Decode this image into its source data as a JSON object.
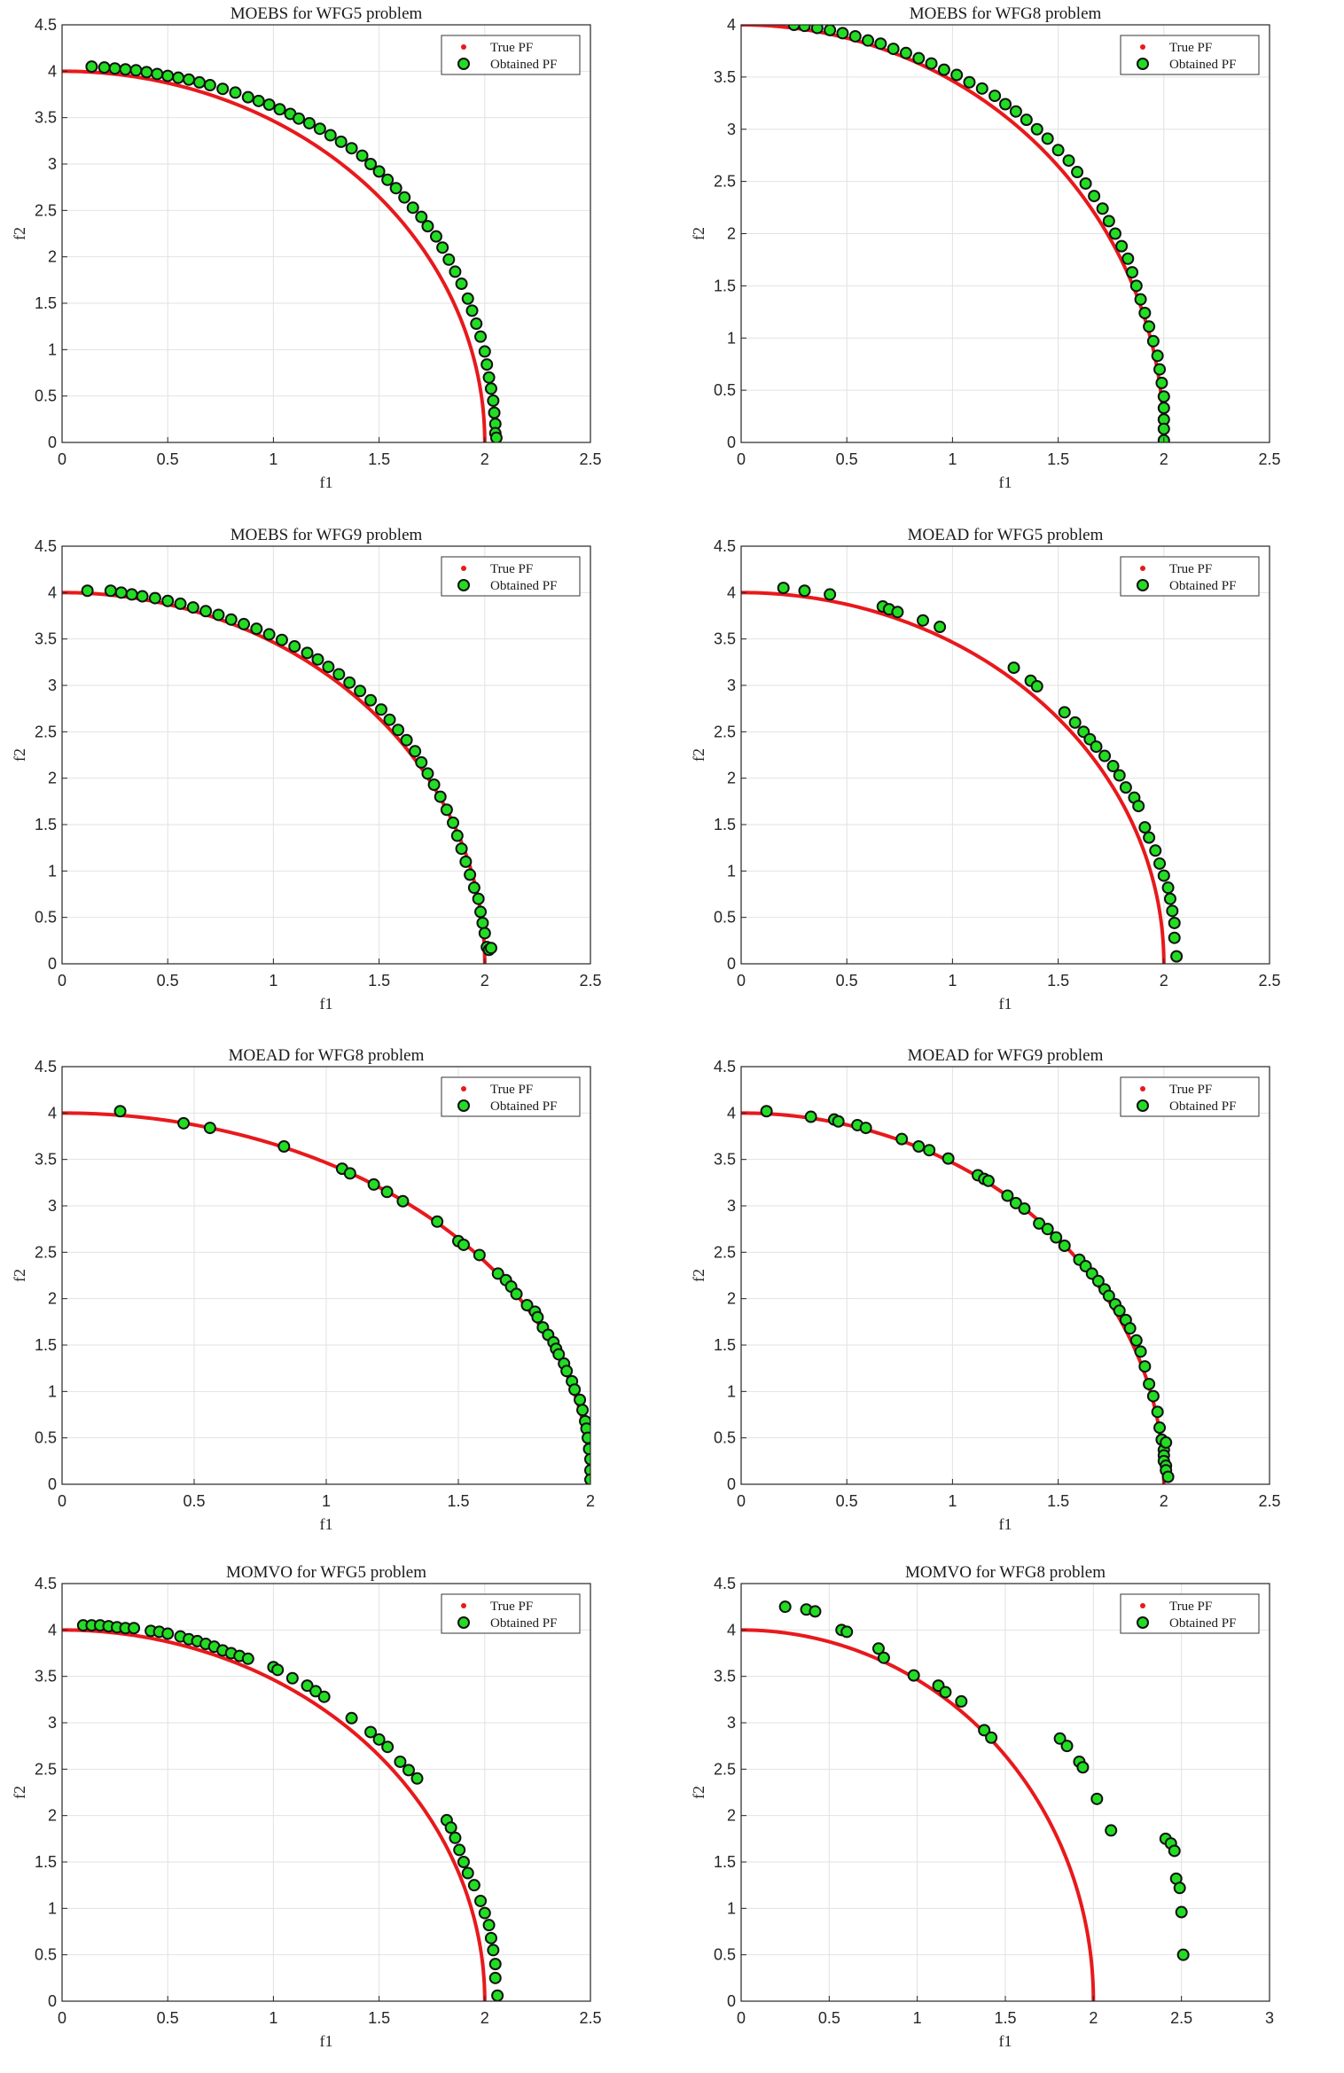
{
  "figure": {
    "colors": {
      "true_pf": "#e8191c",
      "obtained_fill": "#22dd22",
      "obtained_edge": "#111111",
      "grid": "#e2e2e2",
      "axis": "#262626"
    }
  },
  "chart_data": [
    {
      "type": "scatter",
      "title": "MOEBS for WFG5 problem",
      "xlabel": "f1",
      "ylabel": "f2",
      "xlim": [
        0,
        2.5
      ],
      "ylim": [
        0,
        4.5
      ],
      "xticks": [
        "0",
        "0.5",
        "1",
        "1.5",
        "2",
        "2.5"
      ],
      "yticks": [
        "0",
        "0.5",
        "1",
        "1.5",
        "2",
        "2.5",
        "3",
        "3.5",
        "4",
        "4.5"
      ],
      "grid": true,
      "legend_position": "top-right",
      "series": [
        {
          "name": "True PF",
          "kind": "curve",
          "radius": 2.0
        },
        {
          "name": "Obtained PF",
          "kind": "points",
          "x": [
            0.14,
            0.2,
            0.25,
            0.3,
            0.35,
            0.4,
            0.45,
            0.5,
            0.55,
            0.6,
            0.65,
            0.7,
            0.76,
            0.82,
            0.88,
            0.93,
            0.98,
            1.03,
            1.08,
            1.12,
            1.17,
            1.22,
            1.27,
            1.32,
            1.37,
            1.42,
            1.46,
            1.5,
            1.54,
            1.58,
            1.62,
            1.66,
            1.7,
            1.73,
            1.77,
            1.8,
            1.83,
            1.86,
            1.89,
            1.92,
            1.94,
            1.96,
            1.98,
            2.0,
            2.01,
            2.02,
            2.03,
            2.04,
            2.045,
            2.05,
            2.05,
            2.055
          ],
          "y": [
            4.05,
            4.04,
            4.03,
            4.02,
            4.01,
            3.99,
            3.97,
            3.95,
            3.93,
            3.91,
            3.88,
            3.85,
            3.81,
            3.77,
            3.72,
            3.68,
            3.64,
            3.59,
            3.54,
            3.49,
            3.44,
            3.38,
            3.31,
            3.24,
            3.17,
            3.09,
            3.0,
            2.92,
            2.83,
            2.74,
            2.64,
            2.53,
            2.43,
            2.33,
            2.22,
            2.1,
            1.97,
            1.84,
            1.71,
            1.55,
            1.42,
            1.28,
            1.14,
            0.98,
            0.84,
            0.7,
            0.58,
            0.45,
            0.32,
            0.2,
            0.1,
            0.05
          ]
        }
      ]
    },
    {
      "type": "scatter",
      "title": "MOEBS for WFG8 problem",
      "xlabel": "f1",
      "ylabel": "f2",
      "xlim": [
        0,
        2.5
      ],
      "ylim": [
        0,
        4
      ],
      "xticks": [
        "0",
        "0.5",
        "1",
        "1.5",
        "2",
        "2.5"
      ],
      "yticks": [
        "0",
        "0.5",
        "1",
        "1.5",
        "2",
        "2.5",
        "3",
        "3.5",
        "4"
      ],
      "grid": true,
      "legend_position": "top-right",
      "series": [
        {
          "name": "True PF",
          "kind": "curve",
          "radius": 2.0
        },
        {
          "name": "Obtained PF",
          "kind": "points",
          "x": [
            0.25,
            0.3,
            0.36,
            0.42,
            0.48,
            0.54,
            0.6,
            0.66,
            0.72,
            0.78,
            0.84,
            0.9,
            0.96,
            1.02,
            1.08,
            1.14,
            1.2,
            1.25,
            1.3,
            1.35,
            1.4,
            1.45,
            1.5,
            1.55,
            1.59,
            1.63,
            1.67,
            1.71,
            1.74,
            1.77,
            1.8,
            1.83,
            1.85,
            1.87,
            1.89,
            1.91,
            1.93,
            1.95,
            1.97,
            1.98,
            1.99,
            2.0,
            2.0,
            2.0,
            2.0,
            2.0
          ],
          "y": [
            4.0,
            3.99,
            3.97,
            3.95,
            3.92,
            3.89,
            3.85,
            3.82,
            3.77,
            3.73,
            3.68,
            3.63,
            3.57,
            3.52,
            3.45,
            3.39,
            3.32,
            3.24,
            3.17,
            3.09,
            3.0,
            2.91,
            2.8,
            2.7,
            2.59,
            2.48,
            2.36,
            2.24,
            2.12,
            2.0,
            1.88,
            1.76,
            1.63,
            1.5,
            1.37,
            1.24,
            1.11,
            0.97,
            0.83,
            0.7,
            0.57,
            0.44,
            0.33,
            0.22,
            0.13,
            0.02
          ]
        }
      ]
    },
    {
      "type": "scatter",
      "title": "MOEBS for WFG9 problem",
      "xlabel": "f1",
      "ylabel": "f2",
      "xlim": [
        0,
        2.5
      ],
      "ylim": [
        0,
        4.5
      ],
      "xticks": [
        "0",
        "0.5",
        "1",
        "1.5",
        "2",
        "2.5"
      ],
      "yticks": [
        "0",
        "0.5",
        "1",
        "1.5",
        "2",
        "2.5",
        "3",
        "3.5",
        "4",
        "4.5"
      ],
      "grid": true,
      "legend_position": "top-right",
      "series": [
        {
          "name": "True PF",
          "kind": "curve",
          "radius": 2.0
        },
        {
          "name": "Obtained PF",
          "kind": "points",
          "x": [
            0.12,
            0.23,
            0.28,
            0.33,
            0.38,
            0.44,
            0.5,
            0.56,
            0.62,
            0.68,
            0.74,
            0.8,
            0.86,
            0.92,
            0.98,
            1.04,
            1.1,
            1.16,
            1.21,
            1.26,
            1.31,
            1.36,
            1.41,
            1.46,
            1.51,
            1.55,
            1.59,
            1.63,
            1.67,
            1.7,
            1.73,
            1.76,
            1.79,
            1.82,
            1.85,
            1.87,
            1.89,
            1.91,
            1.93,
            1.95,
            1.97,
            1.98,
            1.99,
            2.0,
            2.01,
            2.02,
            2.03
          ],
          "y": [
            4.02,
            4.02,
            4.0,
            3.98,
            3.96,
            3.94,
            3.91,
            3.88,
            3.84,
            3.8,
            3.76,
            3.71,
            3.66,
            3.61,
            3.55,
            3.49,
            3.42,
            3.35,
            3.28,
            3.2,
            3.12,
            3.03,
            2.94,
            2.84,
            2.74,
            2.63,
            2.52,
            2.41,
            2.29,
            2.17,
            2.05,
            1.93,
            1.8,
            1.66,
            1.52,
            1.38,
            1.24,
            1.1,
            0.96,
            0.82,
            0.7,
            0.56,
            0.44,
            0.33,
            0.18,
            0.15,
            0.17
          ]
        }
      ]
    },
    {
      "type": "scatter",
      "title": "MOEAD for WFG5 problem",
      "xlabel": "f1",
      "ylabel": "f2",
      "xlim": [
        0,
        2.5
      ],
      "ylim": [
        0,
        4.5
      ],
      "xticks": [
        "0",
        "0.5",
        "1",
        "1.5",
        "2",
        "2.5"
      ],
      "yticks": [
        "0",
        "0.5",
        "1",
        "1.5",
        "2",
        "2.5",
        "3",
        "3.5",
        "4",
        "4.5"
      ],
      "grid": true,
      "legend_position": "top-right",
      "series": [
        {
          "name": "True PF",
          "kind": "curve",
          "radius": 2.0
        },
        {
          "name": "Obtained PF",
          "kind": "points",
          "x": [
            0.2,
            0.3,
            0.42,
            0.67,
            0.7,
            0.74,
            0.86,
            0.94,
            1.29,
            1.37,
            1.4,
            1.53,
            1.58,
            1.62,
            1.65,
            1.68,
            1.72,
            1.76,
            1.79,
            1.82,
            1.86,
            1.88,
            1.91,
            1.93,
            1.96,
            1.98,
            2.0,
            2.02,
            2.03,
            2.04,
            2.05,
            2.05,
            2.06
          ],
          "y": [
            4.05,
            4.02,
            3.98,
            3.85,
            3.82,
            3.79,
            3.7,
            3.63,
            3.19,
            3.05,
            2.99,
            2.71,
            2.6,
            2.5,
            2.42,
            2.34,
            2.24,
            2.13,
            2.03,
            1.9,
            1.79,
            1.7,
            1.47,
            1.36,
            1.22,
            1.08,
            0.95,
            0.82,
            0.7,
            0.57,
            0.44,
            0.28,
            0.08
          ]
        }
      ]
    },
    {
      "type": "scatter",
      "title": "MOEAD for WFG8 problem",
      "xlabel": "f1",
      "ylabel": "f2",
      "xlim": [
        0,
        2
      ],
      "ylim": [
        0,
        4.5
      ],
      "xticks": [
        "0",
        "0.5",
        "1",
        "1.5",
        "2"
      ],
      "yticks": [
        "0",
        "0.5",
        "1",
        "1.5",
        "2",
        "2.5",
        "3",
        "3.5",
        "4",
        "4.5"
      ],
      "grid": true,
      "legend_position": "top-right",
      "series": [
        {
          "name": "True PF",
          "kind": "curve",
          "radius": 2.0
        },
        {
          "name": "Obtained PF",
          "kind": "points",
          "x": [
            0.22,
            0.46,
            0.56,
            0.84,
            1.06,
            1.09,
            1.18,
            1.23,
            1.29,
            1.42,
            1.5,
            1.52,
            1.58,
            1.65,
            1.68,
            1.7,
            1.72,
            1.76,
            1.79,
            1.8,
            1.82,
            1.84,
            1.86,
            1.87,
            1.88,
            1.9,
            1.91,
            1.93,
            1.94,
            1.96,
            1.97,
            1.98,
            1.985,
            1.99,
            1.995,
            2.0,
            2.0,
            2.0
          ],
          "y": [
            4.02,
            3.89,
            3.84,
            3.64,
            3.4,
            3.35,
            3.23,
            3.15,
            3.05,
            2.83,
            2.62,
            2.58,
            2.47,
            2.27,
            2.2,
            2.13,
            2.05,
            1.93,
            1.86,
            1.8,
            1.69,
            1.61,
            1.53,
            1.46,
            1.4,
            1.3,
            1.22,
            1.11,
            1.02,
            0.91,
            0.8,
            0.68,
            0.6,
            0.5,
            0.38,
            0.27,
            0.15,
            0.05
          ]
        }
      ]
    },
    {
      "type": "scatter",
      "title": "MOEAD for WFG9 problem",
      "xlabel": "f1",
      "ylabel": "f2",
      "xlim": [
        0,
        2.5
      ],
      "ylim": [
        0,
        4.5
      ],
      "xticks": [
        "0",
        "0.5",
        "1",
        "1.5",
        "2",
        "2.5"
      ],
      "yticks": [
        "0",
        "0.5",
        "1",
        "1.5",
        "2",
        "2.5",
        "3",
        "3.5",
        "4",
        "4.5"
      ],
      "grid": true,
      "legend_position": "top-right",
      "series": [
        {
          "name": "True PF",
          "kind": "curve",
          "radius": 2.0
        },
        {
          "name": "Obtained PF",
          "kind": "points",
          "x": [
            0.12,
            0.33,
            0.44,
            0.46,
            0.55,
            0.59,
            0.76,
            0.84,
            0.89,
            0.98,
            1.12,
            1.15,
            1.17,
            1.26,
            1.3,
            1.34,
            1.41,
            1.45,
            1.49,
            1.53,
            1.6,
            1.63,
            1.66,
            1.69,
            1.72,
            1.74,
            1.77,
            1.79,
            1.82,
            1.84,
            1.87,
            1.89,
            1.91,
            1.93,
            1.95,
            1.97,
            1.98,
            1.99,
            2.0,
            2.0,
            2.0,
            2.01,
            2.01,
            2.01,
            2.02
          ],
          "y": [
            4.02,
            3.96,
            3.93,
            3.91,
            3.87,
            3.84,
            3.72,
            3.64,
            3.6,
            3.51,
            3.33,
            3.29,
            3.27,
            3.11,
            3.03,
            2.97,
            2.81,
            2.75,
            2.66,
            2.57,
            2.42,
            2.35,
            2.27,
            2.19,
            2.1,
            2.03,
            1.94,
            1.87,
            1.77,
            1.68,
            1.55,
            1.43,
            1.27,
            1.08,
            0.95,
            0.78,
            0.61,
            0.48,
            0.37,
            0.31,
            0.25,
            0.45,
            0.2,
            0.15,
            0.08
          ]
        }
      ]
    },
    {
      "type": "scatter",
      "title": "MOMVO for WFG5 problem",
      "xlabel": "f1",
      "ylabel": "f2",
      "xlim": [
        0,
        2.5
      ],
      "ylim": [
        0,
        4.5
      ],
      "xticks": [
        "0",
        "0.5",
        "1",
        "1.5",
        "2",
        "2.5"
      ],
      "yticks": [
        "0",
        "0.5",
        "1",
        "1.5",
        "2",
        "2.5",
        "3",
        "3.5",
        "4",
        "4.5"
      ],
      "grid": true,
      "legend_position": "top-right",
      "series": [
        {
          "name": "True PF",
          "kind": "curve",
          "radius": 2.0
        },
        {
          "name": "Obtained PF",
          "kind": "points",
          "x": [
            0.1,
            0.14,
            0.18,
            0.22,
            0.26,
            0.3,
            0.34,
            0.42,
            0.46,
            0.5,
            0.56,
            0.6,
            0.64,
            0.68,
            0.72,
            0.76,
            0.8,
            0.84,
            0.88,
            1.0,
            1.02,
            1.09,
            1.16,
            1.2,
            1.24,
            1.37,
            1.46,
            1.5,
            1.54,
            1.6,
            1.64,
            1.68,
            1.82,
            1.84,
            1.86,
            1.88,
            1.9,
            1.92,
            1.95,
            1.98,
            2.0,
            2.02,
            2.03,
            2.04,
            2.05,
            2.05,
            2.06
          ],
          "y": [
            4.05,
            4.05,
            4.05,
            4.04,
            4.03,
            4.02,
            4.02,
            3.99,
            3.98,
            3.96,
            3.93,
            3.9,
            3.88,
            3.85,
            3.82,
            3.78,
            3.75,
            3.72,
            3.69,
            3.6,
            3.57,
            3.48,
            3.4,
            3.34,
            3.28,
            3.05,
            2.9,
            2.82,
            2.74,
            2.58,
            2.49,
            2.4,
            1.95,
            1.87,
            1.76,
            1.63,
            1.5,
            1.38,
            1.25,
            1.08,
            0.95,
            0.82,
            0.68,
            0.55,
            0.4,
            0.25,
            0.06
          ]
        }
      ]
    },
    {
      "type": "scatter",
      "title": "MOMVO for WFG8 problem",
      "xlabel": "f1",
      "ylabel": "f2",
      "xlim": [
        0,
        3
      ],
      "ylim": [
        0,
        4.5
      ],
      "xticks": [
        "0",
        "0.5",
        "1",
        "1.5",
        "2",
        "2.5",
        "3"
      ],
      "yticks": [
        "0",
        "0.5",
        "1",
        "1.5",
        "2",
        "2.5",
        "3",
        "3.5",
        "4",
        "4.5"
      ],
      "grid": true,
      "legend_position": "top-right",
      "series": [
        {
          "name": "True PF",
          "kind": "curve",
          "radius": 2.0
        },
        {
          "name": "Obtained PF",
          "kind": "points",
          "x": [
            0.25,
            0.37,
            0.42,
            0.57,
            0.6,
            0.78,
            0.81,
            0.98,
            1.12,
            1.16,
            1.25,
            1.38,
            1.42,
            1.81,
            1.85,
            1.92,
            1.94,
            2.02,
            2.1,
            2.41,
            2.44,
            2.46,
            2.47,
            2.49,
            2.5,
            2.51
          ],
          "y": [
            4.25,
            4.22,
            4.2,
            4.0,
            3.98,
            3.8,
            3.7,
            3.51,
            3.4,
            3.33,
            3.23,
            2.92,
            2.84,
            2.83,
            2.75,
            2.58,
            2.52,
            2.18,
            1.84,
            1.75,
            1.7,
            1.62,
            1.32,
            1.22,
            0.96,
            0.5
          ]
        }
      ]
    }
  ]
}
